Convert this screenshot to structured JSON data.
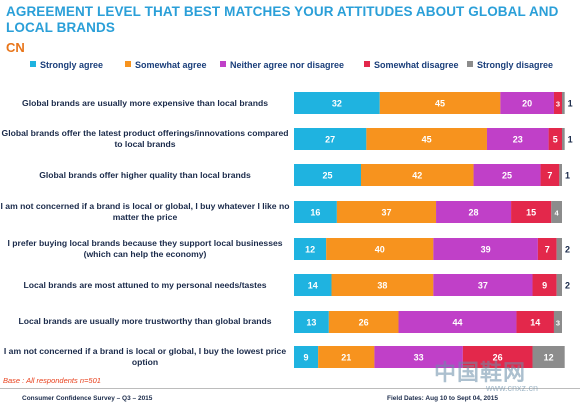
{
  "title": "AGREEMENT LEVEL THAT BEST MATCHES YOUR ATTITUDES ABOUT GLOBAL AND LOCAL BRANDS",
  "subtitle": "CN",
  "footnote": "Base : All respondents n=501",
  "footer_left": "Consumer Confidence Survey – Q3 – 2015",
  "footer_right": "Field Dates: Aug 10 to Sept 04, 2015",
  "watermark": "中国鞋网",
  "watermark_url": "www.cnxz.cn",
  "chart_data": {
    "type": "bar",
    "orientation": "horizontal",
    "stacked": true,
    "grid": false,
    "legend_position": "top",
    "categories": [
      "Global brands are usually more expensive than local brands",
      "Global brands offer the latest product offerings/innovations compared to local brands",
      "Global brands offer higher quality than local brands",
      "I am not concerned if a brand is local or global, I buy whatever I like no matter the price",
      "I prefer buying local brands because they support local businesses (which can help the economy)",
      "Local brands are most attuned to my personal needs/tastes",
      "Local brands are usually more trustworthy than global brands",
      "I am not concerned if a brand is local or global, I buy the lowest price option"
    ],
    "series": [
      {
        "name": "Strongly agree",
        "color": "#1fb3e0",
        "values": [
          32,
          27,
          25,
          16,
          12,
          14,
          13,
          9
        ]
      },
      {
        "name": "Somewhat agree",
        "color": "#f7931e",
        "values": [
          45,
          45,
          42,
          37,
          40,
          38,
          26,
          21
        ]
      },
      {
        "name": "Neither agree nor disagree",
        "color": "#c040c8",
        "values": [
          20,
          23,
          25,
          28,
          39,
          37,
          44,
          33
        ]
      },
      {
        "name": "Somewhat disagree",
        "color": "#e3284b",
        "values": [
          3,
          5,
          7,
          15,
          7,
          9,
          14,
          26
        ]
      },
      {
        "name": "Strongly disagree",
        "color": "#8c8c8c",
        "values": [
          1,
          1,
          1,
          4,
          2,
          2,
          3,
          12
        ]
      }
    ]
  }
}
